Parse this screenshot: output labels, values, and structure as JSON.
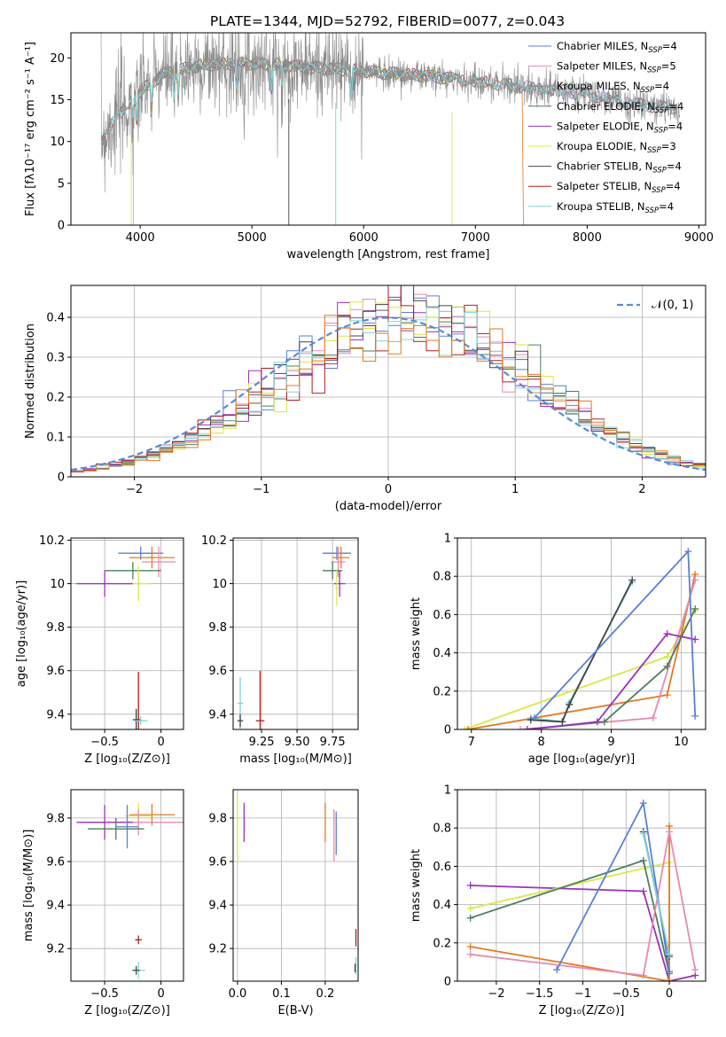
{
  "figure_title": "PLATE=1344, MJD=52792, FIBERID=0077, z=0.043",
  "colors": {
    "Chabrier MILES": "#5b7fd6",
    "Salpeter MILES": "#e58ab2",
    "Kroupa MILES": "#8a8a8a",
    "Chabrier ELODIE": "#4e7d5e",
    "Salpeter ELODIE": "#9b30b8",
    "Kroupa ELODIE": "#d8e84a",
    "Chabrier STELIB": "#444444",
    "Salpeter STELIB": "#b31c1c",
    "Kroupa STELIB": "#7fd3d8",
    "orange": "#e07b22",
    "normal": "#5b8bd6"
  },
  "chart_data": [
    {
      "type": "line",
      "title": "PLATE=1344, MJD=52792, FIBERID=0077, z=0.043",
      "xlabel": "wavelength [Angstrom, rest frame]",
      "ylabel": "Flux [fλ10⁻¹⁷ erg cm⁻² s⁻¹ A⁻¹]",
      "xlim": [
        3380,
        9060
      ],
      "ylim": [
        0,
        23
      ],
      "xticks": [
        4000,
        5000,
        6000,
        7000,
        8000,
        9000
      ],
      "yticks": [
        0,
        5,
        10,
        15,
        20
      ],
      "legend_location": "top-right",
      "legend": [
        {
          "name": "Chabrier MILES",
          "ssp": "4"
        },
        {
          "name": "Salpeter MILES",
          "ssp": "5"
        },
        {
          "name": "Kroupa MILES",
          "ssp": "4"
        },
        {
          "name": "Chabrier ELODIE",
          "ssp": "4"
        },
        {
          "name": "Salpeter ELODIE",
          "ssp": "4"
        },
        {
          "name": "Kroupa ELODIE",
          "ssp": "3"
        },
        {
          "name": "Chabrier STELIB",
          "ssp": "4"
        },
        {
          "name": "Salpeter STELIB",
          "ssp": "4"
        },
        {
          "name": "Kroupa STELIB",
          "ssp": "4"
        }
      ],
      "spectrum_continuum": {
        "x": [
          3650,
          3800,
          4000,
          4200,
          4400,
          4600,
          4800,
          5000,
          5200,
          5400,
          5600,
          5800,
          6000,
          6200,
          6400,
          6600,
          6800,
          7000,
          7200,
          7400,
          7600,
          7800,
          8000,
          8200,
          8400,
          8600,
          8800
        ],
        "y": [
          10.5,
          13.0,
          16.0,
          18.0,
          18.7,
          19.2,
          19.3,
          19.3,
          19.2,
          19.0,
          18.8,
          18.6,
          18.4,
          18.2,
          18.0,
          17.8,
          17.5,
          17.2,
          16.9,
          16.6,
          16.3,
          16.0,
          15.6,
          15.0,
          14.6,
          14.2,
          14.0
        ]
      }
    },
    {
      "type": "line",
      "xlabel": "(data-model)/error",
      "ylabel": "Normed distribution",
      "xlim": [
        -2.5,
        2.5
      ],
      "ylim": [
        0,
        0.48
      ],
      "xticks": [
        -2,
        -1,
        0,
        1,
        2
      ],
      "yticks": [
        0.0,
        0.1,
        0.2,
        0.3,
        0.4
      ],
      "legend_location": "top-right",
      "curve": "𝒩(0, 1)",
      "histogram": "step histograms of residuals for all nine fits, bin width 0.1"
    },
    {
      "type": "scatter",
      "xlabel": "Z [log₁₀(Z/Z⊙)]",
      "ylabel": "age  [log₁₀(age/yr)]",
      "xlim": [
        -0.8,
        0.2
      ],
      "ylim": [
        9.33,
        10.21
      ],
      "xticks": [
        -0.5,
        0.0
      ],
      "yticks": [
        9.4,
        9.6,
        9.8,
        10.0,
        10.2
      ],
      "points": [
        {
          "series": "Chabrier MILES",
          "x": -0.18,
          "y": 10.14,
          "xerr": 0.2,
          "yerr": 0.03
        },
        {
          "series": "orange",
          "x": -0.08,
          "y": 10.12,
          "xerr": 0.2,
          "yerr": 0.05
        },
        {
          "series": "Salpeter MILES",
          "x": -0.02,
          "y": 10.1,
          "xerr": 0.15,
          "yerr": 0.07
        },
        {
          "series": "Chabrier ELODIE",
          "x": -0.25,
          "y": 10.06,
          "xerr": 0.25,
          "yerr": 0.04
        },
        {
          "series": "Kroupa ELODIE",
          "x": -0.2,
          "y": 10.0,
          "xerr": 0.1,
          "yerr": 0.08
        },
        {
          "series": "Salpeter ELODIE",
          "x": -0.5,
          "y": 10.0,
          "xerr": 0.25,
          "yerr": 0.06
        },
        {
          "series": "Chabrier STELIB",
          "x": -0.22,
          "y": 9.375,
          "xerr": 0.03,
          "yerr": 0.05
        },
        {
          "series": "Salpeter STELIB",
          "x": -0.2,
          "y": 9.375,
          "xerr": 0.02,
          "yerr": 0.22
        },
        {
          "series": "Kroupa STELIB",
          "x": -0.18,
          "y": 9.37,
          "xerr": 0.06,
          "yerr": 0.02
        }
      ]
    },
    {
      "type": "scatter",
      "xlabel": "mass [log₁₀(M/M⊙)]",
      "xlim": [
        9.05,
        9.93
      ],
      "ylim": [
        9.33,
        10.21
      ],
      "xticks": [
        9.25,
        9.5,
        9.75
      ],
      "xticklabels": [
        "9.25",
        "9.50",
        "9.75"
      ],
      "yticks": [
        9.4,
        9.6,
        9.8,
        10.0,
        10.2
      ],
      "points": [
        {
          "series": "Chabrier MILES",
          "x": 9.78,
          "y": 10.14,
          "xerr": 0.1,
          "yerr": 0.03
        },
        {
          "series": "orange",
          "x": 9.81,
          "y": 10.12,
          "xerr": 0.06,
          "yerr": 0.05
        },
        {
          "series": "Salpeter MILES",
          "x": 9.79,
          "y": 10.1,
          "xerr": 0.05,
          "yerr": 0.07
        },
        {
          "series": "Chabrier ELODIE",
          "x": 9.75,
          "y": 10.06,
          "xerr": 0.07,
          "yerr": 0.04
        },
        {
          "series": "Salpeter ELODIE",
          "x": 9.8,
          "y": 10.0,
          "xerr": 0.04,
          "yerr": 0.06
        },
        {
          "series": "Kroupa ELODIE",
          "x": 9.78,
          "y": 9.98,
          "xerr": 0.01,
          "yerr": 0.08
        },
        {
          "series": "Kroupa STELIB",
          "x": 9.1,
          "y": 9.45,
          "xerr": 0.02,
          "yerr": 0.12
        },
        {
          "series": "Salpeter STELIB",
          "x": 9.24,
          "y": 9.37,
          "xerr": 0.03,
          "yerr": 0.23
        },
        {
          "series": "Chabrier STELIB",
          "x": 9.1,
          "y": 9.37,
          "xerr": 0.02,
          "yerr": 0.03
        }
      ]
    },
    {
      "type": "line",
      "xlabel": "age  [log₁₀(age/yr)]",
      "ylabel": "mass weight",
      "xlim": [
        6.8,
        10.35
      ],
      "ylim": [
        0,
        1
      ],
      "xticks": [
        7,
        8,
        9,
        10
      ],
      "yticks": [
        0.0,
        0.2,
        0.4,
        0.6,
        0.8,
        1.0
      ],
      "series": [
        {
          "series": "Kroupa ELODIE",
          "x": [
            6.9,
            9.8,
            10.2
          ],
          "y": [
            0.0,
            0.38,
            0.62
          ]
        },
        {
          "series": "orange",
          "x": [
            6.95,
            9.8,
            10.2
          ],
          "y": [
            0.0,
            0.18,
            0.81
          ]
        },
        {
          "series": "Salpeter MILES",
          "x": [
            7.7,
            9.6,
            10.2
          ],
          "y": [
            0.0,
            0.06,
            0.78
          ]
        },
        {
          "series": "Chabrier ELODIE",
          "x": [
            7.8,
            8.9,
            9.8,
            10.2
          ],
          "y": [
            0.0,
            0.04,
            0.33,
            0.63
          ]
        },
        {
          "series": "Salpeter ELODIE",
          "x": [
            7.8,
            8.8,
            9.8,
            10.2
          ],
          "y": [
            0.0,
            0.04,
            0.5,
            0.47
          ]
        },
        {
          "series": "Kroupa STELIB",
          "x": [
            7.85,
            8.3,
            8.4,
            9.3
          ],
          "y": [
            0.06,
            0.04,
            0.14,
            0.77
          ]
        },
        {
          "series": "Chabrier STELIB",
          "x": [
            7.85,
            8.3,
            8.4,
            9.3
          ],
          "y": [
            0.05,
            0.04,
            0.13,
            0.78
          ]
        },
        {
          "series": "Chabrier MILES",
          "x": [
            7.9,
            10.1,
            10.2
          ],
          "y": [
            0.06,
            0.93,
            0.07
          ]
        }
      ]
    },
    {
      "type": "scatter",
      "xlabel": "Z [log₁₀(Z/Z⊙)]",
      "ylabel": "mass [log₁₀(M/M⊙)]",
      "xlim": [
        -0.8,
        0.2
      ],
      "ylim": [
        9.05,
        9.93
      ],
      "xticks": [
        -0.5,
        0.0
      ],
      "yticks": [
        9.2,
        9.4,
        9.6,
        9.8
      ],
      "points": [
        {
          "series": "orange",
          "x": -0.08,
          "y": 9.815,
          "xerr": 0.2,
          "yerr": 0.05
        },
        {
          "series": "Kroupa ELODIE",
          "x": -0.2,
          "y": 9.81,
          "xerr": 0.12,
          "yerr": 0.06
        },
        {
          "series": "Salpeter MILES",
          "x": -0.2,
          "y": 9.78,
          "xerr": 0.5,
          "yerr": 0.06
        },
        {
          "series": "Salpeter ELODIE",
          "x": -0.5,
          "y": 9.78,
          "xerr": 0.25,
          "yerr": 0.08
        },
        {
          "series": "Chabrier MILES",
          "x": -0.3,
          "y": 9.76,
          "xerr": 0.1,
          "yerr": 0.1
        },
        {
          "series": "Chabrier ELODIE",
          "x": -0.4,
          "y": 9.75,
          "xerr": 0.25,
          "yerr": 0.05
        },
        {
          "series": "Salpeter STELIB",
          "x": -0.2,
          "y": 9.24,
          "xerr": 0.03,
          "yerr": 0.02
        },
        {
          "series": "Kroupa STELIB",
          "x": -0.2,
          "y": 9.1,
          "xerr": 0.06,
          "yerr": 0.04
        },
        {
          "series": "Chabrier STELIB",
          "x": -0.22,
          "y": 9.1,
          "xerr": 0.03,
          "yerr": 0.02
        }
      ]
    },
    {
      "type": "scatter",
      "xlabel": "E(B-V)",
      "xlim": [
        -0.01,
        0.275
      ],
      "ylim": [
        9.05,
        9.93
      ],
      "xticks": [
        0.0,
        0.1,
        0.2
      ],
      "xticklabels": [
        "0.0",
        "0.1",
        "0.2"
      ],
      "yticks": [
        9.2,
        9.4,
        9.6,
        9.8
      ],
      "points": [
        {
          "series": "Kroupa ELODIE",
          "x": 0.0,
          "y": 9.75,
          "yerr": 0.15
        },
        {
          "series": "Salpeter ELODIE",
          "x": 0.015,
          "y": 9.78,
          "yerr": 0.09
        },
        {
          "series": "orange",
          "x": 0.2,
          "y": 9.78,
          "yerr": 0.09
        },
        {
          "series": "Salpeter MILES",
          "x": 0.22,
          "y": 9.72,
          "yerr": 0.12
        },
        {
          "series": "Chabrier MILES",
          "x": 0.225,
          "y": 9.73,
          "yerr": 0.1
        },
        {
          "series": "Salpeter STELIB",
          "x": 0.27,
          "y": 9.25,
          "yerr": 0.04
        },
        {
          "series": "Kroupa STELIB",
          "x": 0.27,
          "y": 9.12,
          "yerr": 0.04
        },
        {
          "series": "Chabrier STELIB",
          "x": 0.268,
          "y": 9.11,
          "yerr": 0.02
        }
      ]
    },
    {
      "type": "line",
      "xlabel": "Z [log₁₀(Z/Z⊙)]",
      "ylabel": "mass weight",
      "xlim": [
        -2.45,
        0.42
      ],
      "ylim": [
        0,
        1
      ],
      "xticks": [
        -2.0,
        -1.5,
        -1.0,
        -0.5,
        0.0
      ],
      "yticks": [
        0.0,
        0.2,
        0.4,
        0.6,
        0.8,
        1.0
      ],
      "series": [
        {
          "series": "Salpeter ELODIE",
          "x": [
            -2.3,
            -0.3,
            0.0,
            0.3
          ],
          "y": [
            0.5,
            0.47,
            0.0,
            0.03
          ]
        },
        {
          "series": "Kroupa ELODIE",
          "x": [
            -2.3,
            0.0,
            0.0
          ],
          "y": [
            0.38,
            0.62,
            0.0
          ]
        },
        {
          "series": "Chabrier ELODIE",
          "x": [
            -2.3,
            -0.3,
            0.0
          ],
          "y": [
            0.33,
            0.63,
            0.04
          ]
        },
        {
          "series": "orange",
          "x": [
            -2.3,
            0.0,
            0.0
          ],
          "y": [
            0.18,
            0.0,
            0.81
          ]
        },
        {
          "series": "Salpeter MILES",
          "x": [
            -2.3,
            -0.3,
            0.0,
            0.3
          ],
          "y": [
            0.14,
            0.03,
            0.78,
            0.06
          ]
        },
        {
          "series": "Chabrier MILES",
          "x": [
            -1.3,
            -0.3,
            0.0
          ],
          "y": [
            0.06,
            0.93,
            0.05
          ]
        },
        {
          "series": "Chabrier STELIB",
          "x": [
            -0.3,
            0.0
          ],
          "y": [
            0.78,
            0.13
          ]
        },
        {
          "series": "Kroupa STELIB",
          "x": [
            -0.3,
            0.0
          ],
          "y": [
            0.77,
            0.14
          ]
        }
      ]
    }
  ]
}
